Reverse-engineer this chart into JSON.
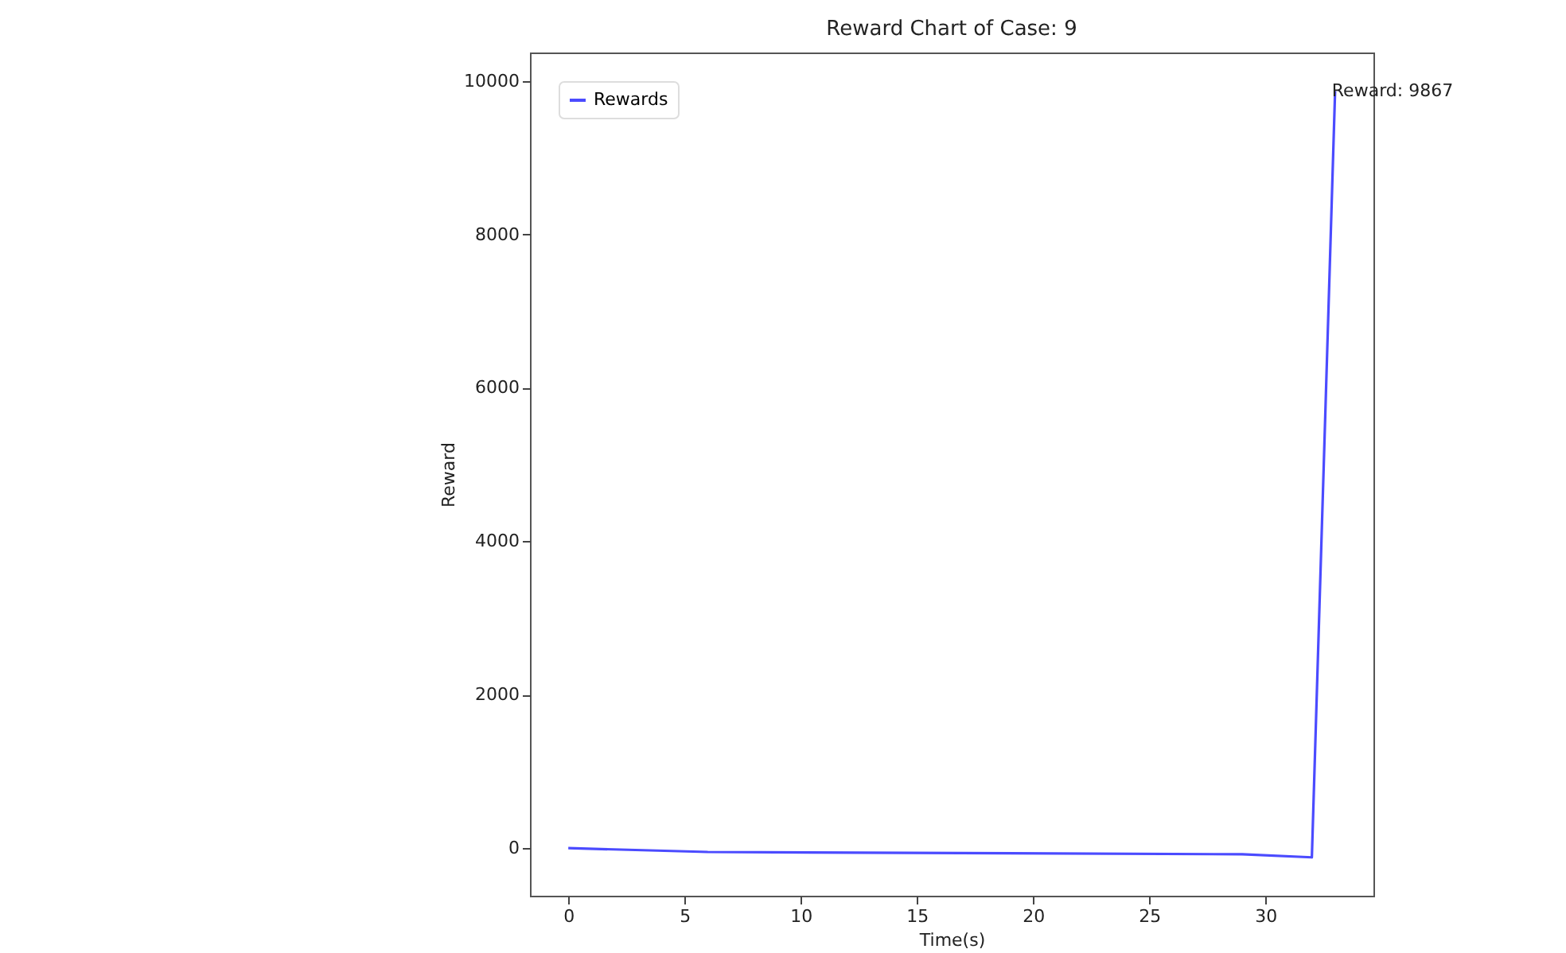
{
  "chart_data": {
    "type": "line",
    "title": "Reward Chart of Case: 9",
    "xlabel": "Time(s)",
    "ylabel": "Reward",
    "x": [
      0,
      6,
      29,
      32,
      33
    ],
    "series": [
      {
        "name": "Rewards",
        "color": "#4b4bff",
        "values": [
          0,
          -50,
          -80,
          -120,
          9867
        ]
      }
    ],
    "xlim": [
      -1.65,
      34.65
    ],
    "xticks": [
      0,
      5,
      10,
      15,
      20,
      25,
      30
    ],
    "ylim": [
      -620,
      10370
    ],
    "yticks": [
      0,
      2000,
      4000,
      6000,
      8000,
      10000
    ],
    "grid": false,
    "legend": "top left",
    "marker": "none",
    "line_style": "solid",
    "annotations": [
      {
        "text": "Reward: 9867",
        "x": 33,
        "y": 9867
      }
    ]
  }
}
